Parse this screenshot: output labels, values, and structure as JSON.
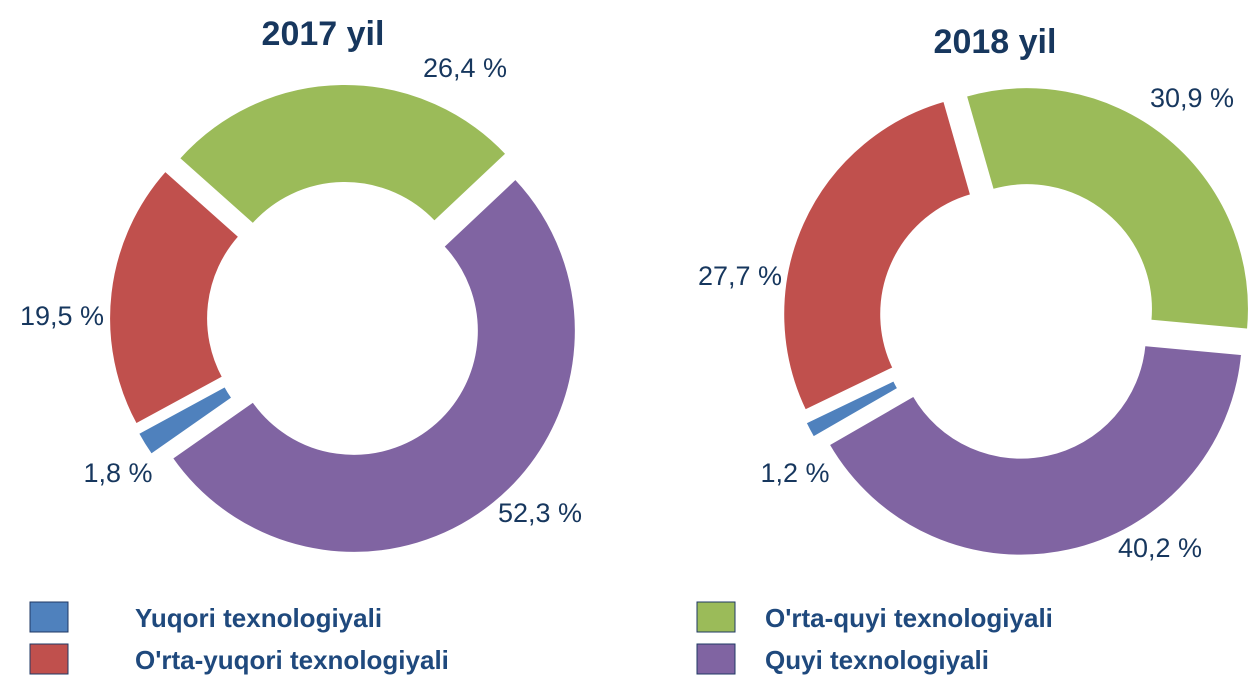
{
  "chart_data": [
    {
      "type": "pie",
      "title": "2017 yil",
      "values": [
        1.8,
        19.5,
        26.4,
        52.3
      ],
      "value_labels": [
        "1,8 %",
        "19,5 %",
        "26,4 %",
        "52,3 %"
      ]
    },
    {
      "type": "pie",
      "title": "2018 yil",
      "values": [
        1.2,
        27.7,
        30.9,
        40.2
      ],
      "value_labels": [
        "1,2 %",
        "27,7 %",
        "30,9 %",
        "40,2 %"
      ]
    }
  ],
  "legend": {
    "names": [
      "Yuqori texnologiyali",
      "O'rta-yuqori texnologiyali",
      "O'rta-quyi texnologiyali",
      "Quyi texnologiyali"
    ],
    "colors": [
      "#4f81bd",
      "#c0504d",
      "#9bbb59",
      "#8064a2"
    ]
  }
}
